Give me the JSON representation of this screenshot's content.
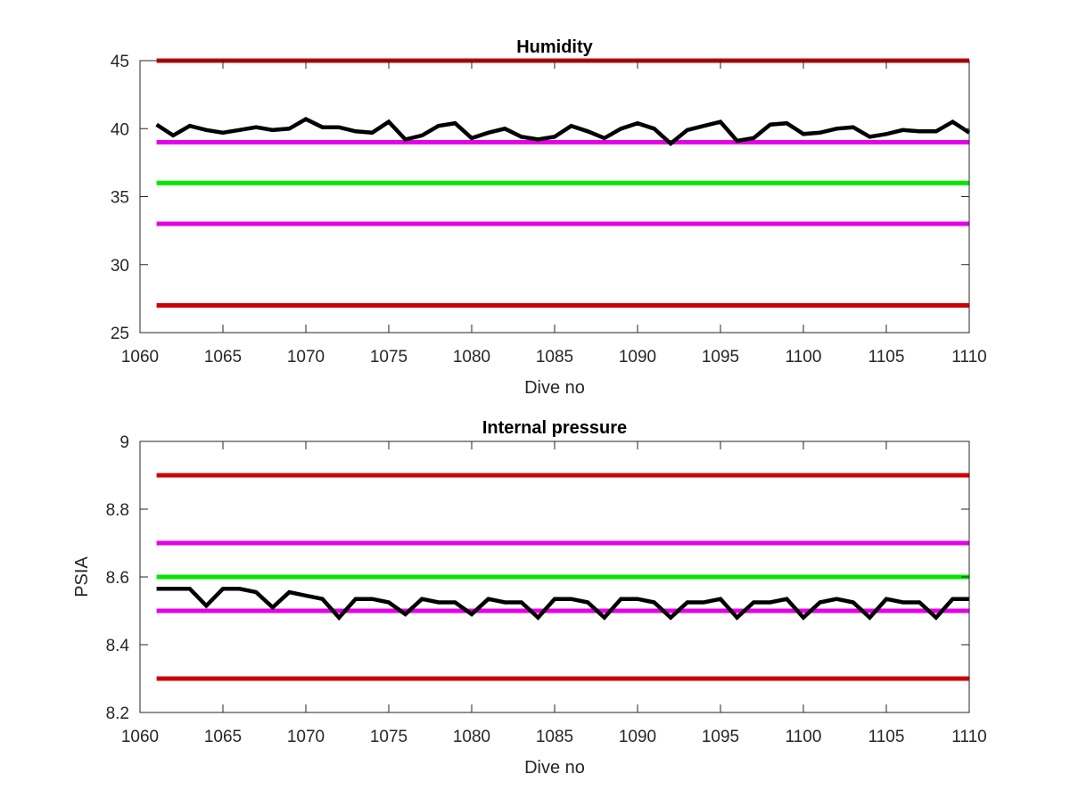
{
  "chart_data": [
    {
      "type": "line",
      "title": "Humidity",
      "xlabel": "Dive no",
      "ylabel": "",
      "xlim": [
        1060,
        1110
      ],
      "ylim": [
        25,
        45
      ],
      "xticks": [
        "1060",
        "1065",
        "1070",
        "1075",
        "1080",
        "1085",
        "1090",
        "1095",
        "1100",
        "1105",
        "1110"
      ],
      "yticks": [
        "25",
        "30",
        "35",
        "40",
        "45"
      ],
      "grid": false,
      "limits": [
        {
          "value": 45,
          "color": "#cc0000"
        },
        {
          "value": 39,
          "color": "#e600e6"
        },
        {
          "value": 36,
          "color": "#00e600"
        },
        {
          "value": 33,
          "color": "#e600e6"
        },
        {
          "value": 27,
          "color": "#cc0000"
        }
      ],
      "series": [
        {
          "color": "#000000",
          "x": [
            1061,
            1062,
            1063,
            1064,
            1065,
            1066,
            1067,
            1068,
            1069,
            1070,
            1071,
            1072,
            1073,
            1074,
            1075,
            1076,
            1077,
            1078,
            1079,
            1080,
            1081,
            1082,
            1083,
            1084,
            1085,
            1086,
            1087,
            1088,
            1089,
            1090,
            1091,
            1092,
            1093,
            1094,
            1095,
            1096,
            1097,
            1098,
            1099,
            1100,
            1101,
            1102,
            1103,
            1104,
            1105,
            1106,
            1107,
            1108,
            1109,
            1110
          ],
          "y": [
            40.3,
            39.5,
            40.2,
            39.9,
            39.7,
            39.9,
            40.1,
            39.9,
            40.0,
            40.7,
            40.1,
            40.1,
            39.8,
            39.7,
            40.5,
            39.2,
            39.5,
            40.2,
            40.4,
            39.3,
            39.7,
            40.0,
            39.4,
            39.2,
            39.4,
            40.2,
            39.8,
            39.3,
            40.0,
            40.4,
            40.0,
            38.9,
            39.9,
            40.2,
            40.5,
            39.1,
            39.3,
            40.3,
            40.4,
            39.6,
            39.7,
            40.0,
            40.1,
            39.4,
            39.6,
            39.9,
            39.8,
            39.8,
            40.5,
            39.7
          ]
        }
      ]
    },
    {
      "type": "line",
      "title": "Internal pressure",
      "xlabel": "Dive no",
      "ylabel": "PSIA",
      "xlim": [
        1060,
        1110
      ],
      "ylim": [
        8.2,
        9.0
      ],
      "xticks": [
        "1060",
        "1065",
        "1070",
        "1075",
        "1080",
        "1085",
        "1090",
        "1095",
        "1100",
        "1105",
        "1110"
      ],
      "yticks": [
        "8.2",
        "8.4",
        "8.6",
        "8.8",
        "9"
      ],
      "grid": false,
      "limits": [
        {
          "value": 8.9,
          "color": "#cc0000"
        },
        {
          "value": 8.7,
          "color": "#e600e6"
        },
        {
          "value": 8.6,
          "color": "#00e600"
        },
        {
          "value": 8.5,
          "color": "#e600e6"
        },
        {
          "value": 8.3,
          "color": "#cc0000"
        }
      ],
      "series": [
        {
          "color": "#000000",
          "x": [
            1061,
            1062,
            1063,
            1064,
            1065,
            1066,
            1067,
            1068,
            1069,
            1070,
            1071,
            1072,
            1073,
            1074,
            1075,
            1076,
            1077,
            1078,
            1079,
            1080,
            1081,
            1082,
            1083,
            1084,
            1085,
            1086,
            1087,
            1088,
            1089,
            1090,
            1091,
            1092,
            1093,
            1094,
            1095,
            1096,
            1097,
            1098,
            1099,
            1100,
            1101,
            1102,
            1103,
            1104,
            1105,
            1106,
            1107,
            1108,
            1109,
            1110
          ],
          "y": [
            8.565,
            8.565,
            8.565,
            8.515,
            8.565,
            8.565,
            8.555,
            8.51,
            8.555,
            8.545,
            8.535,
            8.48,
            8.535,
            8.535,
            8.525,
            8.49,
            8.535,
            8.525,
            8.525,
            8.49,
            8.535,
            8.525,
            8.525,
            8.48,
            8.535,
            8.535,
            8.525,
            8.48,
            8.535,
            8.535,
            8.525,
            8.48,
            8.525,
            8.525,
            8.535,
            8.48,
            8.525,
            8.525,
            8.535,
            8.48,
            8.525,
            8.535,
            8.525,
            8.48,
            8.535,
            8.525,
            8.525,
            8.48,
            8.535,
            8.535
          ]
        }
      ]
    }
  ]
}
